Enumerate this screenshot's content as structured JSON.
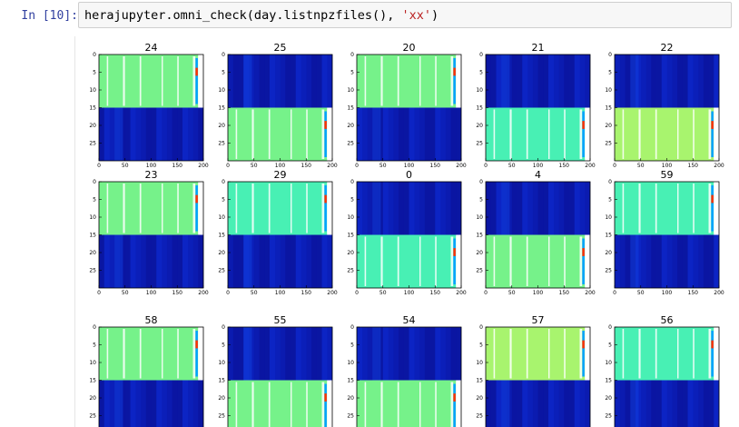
{
  "cell": {
    "prompt": "In [10]:",
    "code_prefix": "herajupyter.omni_check(day.listnpzfiles(), ",
    "code_string": "'xx'",
    "code_suffix": ")"
  },
  "chart_data": {
    "type": "heatmap",
    "colormap": "jet",
    "x_ticks": [
      "0",
      "50",
      "100",
      "150",
      "200"
    ],
    "y_ticks": [
      "0",
      "5",
      "10",
      "15",
      "20",
      "25"
    ],
    "xlim": [
      0,
      200
    ],
    "ylim": [
      30,
      0
    ],
    "panels": [
      {
        "title": "24",
        "top": "green",
        "bottom": "blue"
      },
      {
        "title": "25",
        "top": "blue",
        "bottom": "green"
      },
      {
        "title": "20",
        "top": "green",
        "bottom": "blue"
      },
      {
        "title": "21",
        "top": "blue",
        "bottom": "cyan"
      },
      {
        "title": "22",
        "top": "blue",
        "bottom": "lime"
      },
      {
        "title": "23",
        "top": "green",
        "bottom": "blue"
      },
      {
        "title": "29",
        "top": "cyan",
        "bottom": "blue"
      },
      {
        "title": "0",
        "top": "blue",
        "bottom": "cyan"
      },
      {
        "title": "4",
        "top": "blue",
        "bottom": "green"
      },
      {
        "title": "59",
        "top": "cyan",
        "bottom": "blue"
      },
      {
        "title": "58",
        "top": "green",
        "bottom": "blue"
      },
      {
        "title": "55",
        "top": "blue",
        "bottom": "green"
      },
      {
        "title": "54",
        "top": "blue",
        "bottom": "green"
      },
      {
        "title": "57",
        "top": "lime",
        "bottom": "blue"
      },
      {
        "title": "56",
        "top": "cyan",
        "bottom": "blue"
      }
    ]
  },
  "colors": {
    "blue": "#0a18a8",
    "green": "#76f28a",
    "cyan": "#48f0b4",
    "lime": "#a8f46e",
    "prompt": "#303f9f",
    "string": "#ba2121"
  }
}
